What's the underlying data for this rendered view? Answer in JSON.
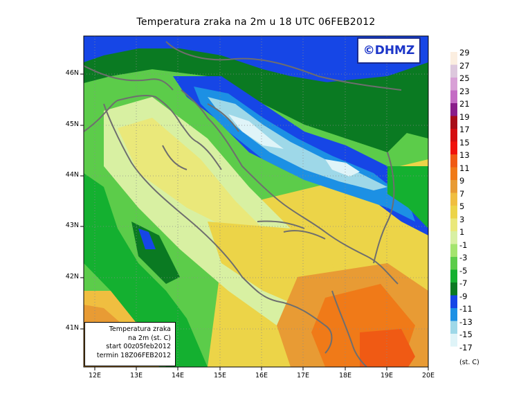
{
  "title": "Temperatura zraka na 2m u 18 UTC 06FEB2012",
  "credit": "©DHMZ",
  "info_box": [
    "Temperatura zraka",
    "na 2m (st. C)",
    "start 00z05feb2012",
    "termin 18Z06FEB2012"
  ],
  "lat_labels": [
    "46N",
    "45N",
    "44N",
    "43N",
    "42N",
    "41N"
  ],
  "lon_labels": [
    "12E",
    "13E",
    "14E",
    "15E",
    "16E",
    "17E",
    "18E",
    "19E",
    "20E"
  ],
  "legend": {
    "labels": [
      "29",
      "27",
      "25",
      "23",
      "21",
      "19",
      "17",
      "15",
      "13",
      "11",
      "9",
      "7",
      "5",
      "3",
      "1",
      "-1",
      "-3",
      "-5",
      "-7",
      "-9",
      "-11",
      "-13",
      "-15",
      "-17"
    ],
    "colors": [
      "#fbeee0",
      "#ddc8dd",
      "#d8a0d6",
      "#c46bc4",
      "#8a1e8a",
      "#a80e18",
      "#d40e10",
      "#f0120c",
      "#f05a14",
      "#f07a18",
      "#e89b34",
      "#f0be40",
      "#ecd448",
      "#eae87a",
      "#d8f0a2",
      "#a4e46e",
      "#5ccc4a",
      "#14b030",
      "#0a7a22",
      "#1646e6",
      "#1c90e4",
      "#9ed8e8",
      "#dff4f8",
      "#ffffff"
    ],
    "unit": "(st. C)"
  }
}
